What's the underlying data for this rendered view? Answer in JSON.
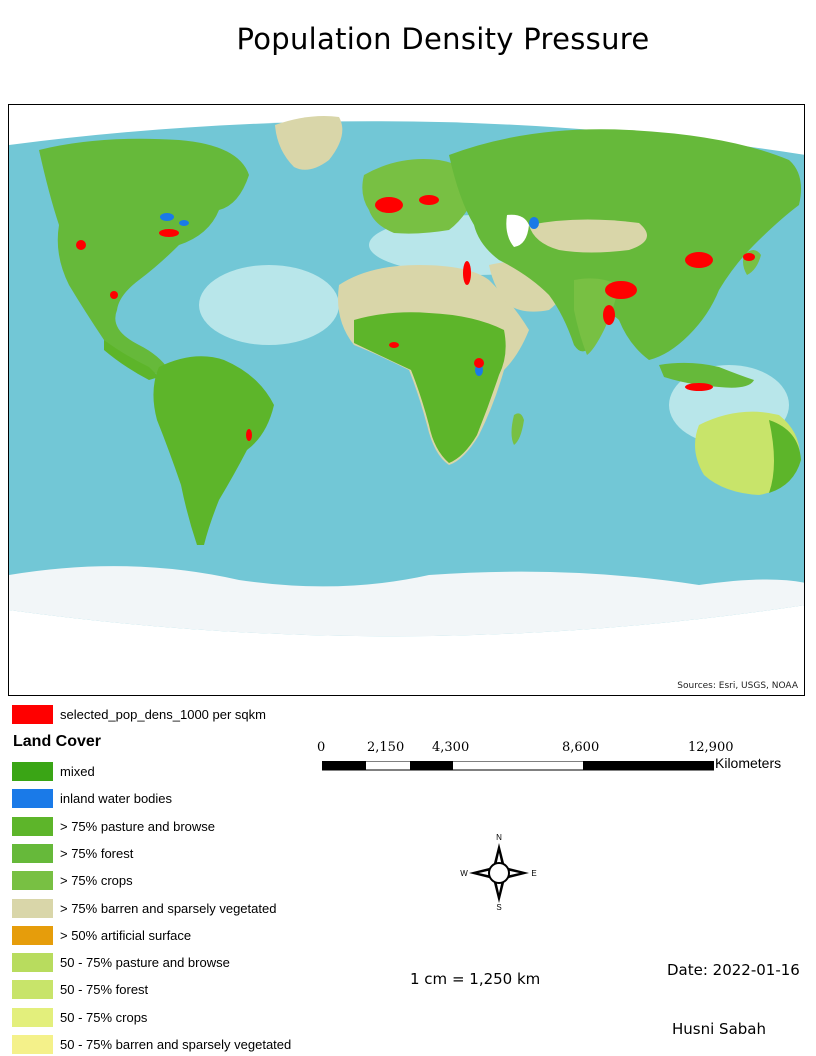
{
  "title": "Population Density  Pressure",
  "map": {
    "sources": "Sources: Esri, USGS, NOAA",
    "ocean_color": "#72c7d6",
    "shelf_color": "#b8e6ea",
    "ice_color": "#f2f6f8"
  },
  "legend": {
    "highlight": {
      "label": "selected_pop_dens_1000 per sqkm",
      "color": "#ff0000"
    },
    "title": "Land Cover",
    "items": [
      {
        "label": "mixed",
        "color": "#3aa515"
      },
      {
        "label": "inland water bodies",
        "color": "#1a7ae8"
      },
      {
        "label": "> 75% pasture and browse",
        "color": "#5db52a"
      },
      {
        "label": "> 75% forest",
        "color": "#66b93a"
      },
      {
        "label": "> 75% crops",
        "color": "#78c043"
      },
      {
        "label": "> 75% barren and sparsely vegetated",
        "color": "#d9d6a9"
      },
      {
        "label": "> 50% artificial surface",
        "color": "#e69d0b"
      },
      {
        "label": "50 - 75% pasture and browse",
        "color": "#b8dc5e"
      },
      {
        "label": "50 - 75% forest",
        "color": "#c8e46a"
      },
      {
        "label": "50 - 75% crops",
        "color": "#e3ef7c"
      },
      {
        "label": "50 - 75% barren and sparsely vegetated",
        "color": "#f4f18a"
      }
    ]
  },
  "scale_bar": {
    "ticks": [
      "0",
      "2,150",
      "4,300",
      "8,600",
      "12,900"
    ],
    "units": "Kilometers"
  },
  "compass": {
    "north": "N",
    "south": "S",
    "east": "E",
    "west": "W"
  },
  "ratio": "1 cm = 1,250 km",
  "date": "Date: 2022-01-16",
  "author": "Husni Sabah"
}
